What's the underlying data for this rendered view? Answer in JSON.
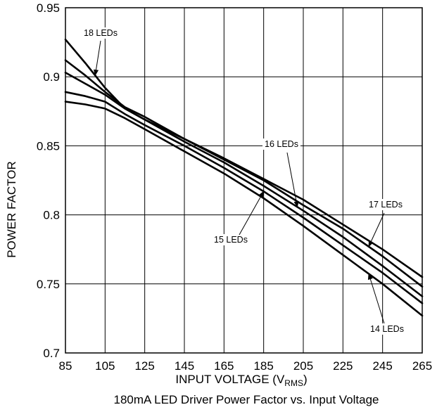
{
  "chart_data": {
    "type": "line",
    "xlabel_main": "INPUT VOLTAGE (V",
    "xlabel_sub": "RMS",
    "xlabel_end": ")",
    "ylabel": "POWER FACTOR",
    "caption": "180mA LED Driver Power Factor vs. Input Voltage",
    "xlim": [
      85,
      265
    ],
    "ylim": [
      0.7,
      0.95
    ],
    "x_ticks": [
      "85",
      "105",
      "125",
      "145",
      "165",
      "185",
      "205",
      "225",
      "245",
      "265"
    ],
    "y_ticks": [
      "0.7",
      "0.75",
      "0.8",
      "0.85",
      "0.9",
      "0.95"
    ],
    "grid": true,
    "series": [
      {
        "name": "14 LEDs",
        "x": [
          85,
          95,
          105,
          115,
          125,
          145,
          165,
          185,
          205,
          225,
          245,
          265
        ],
        "y": [
          0.882,
          0.88,
          0.877,
          0.87,
          0.862,
          0.846,
          0.83,
          0.812,
          0.792,
          0.771,
          0.75,
          0.727
        ]
      },
      {
        "name": "15 LEDs",
        "x": [
          85,
          95,
          105,
          115,
          125,
          145,
          165,
          185,
          205,
          225,
          245,
          265
        ],
        "y": [
          0.889,
          0.886,
          0.882,
          0.873,
          0.865,
          0.85,
          0.834,
          0.817,
          0.798,
          0.778,
          0.758,
          0.736
        ]
      },
      {
        "name": "16 LEDs",
        "x": [
          85,
          95,
          105,
          115,
          125,
          145,
          165,
          185,
          205,
          225,
          245,
          265
        ],
        "y": [
          0.903,
          0.895,
          0.887,
          0.877,
          0.869,
          0.853,
          0.838,
          0.821,
          0.803,
          0.784,
          0.763,
          0.741
        ]
      },
      {
        "name": "17 LEDs",
        "x": [
          85,
          95,
          105,
          115,
          125,
          145,
          165,
          185,
          205,
          225,
          245,
          265
        ],
        "y": [
          0.912,
          0.901,
          0.889,
          0.878,
          0.871,
          0.855,
          0.84,
          0.825,
          0.807,
          0.79,
          0.77,
          0.748
        ]
      },
      {
        "name": "18 LEDs",
        "x": [
          85,
          95,
          105,
          115,
          125,
          145,
          165,
          185,
          205,
          225,
          245,
          265
        ],
        "y": [
          0.927,
          0.91,
          0.892,
          0.877,
          0.869,
          0.855,
          0.841,
          0.826,
          0.811,
          0.793,
          0.775,
          0.755
        ]
      }
    ],
    "annotations": [
      {
        "text": "18 LEDs",
        "series": "18 LEDs"
      },
      {
        "text": "16 LEDs",
        "series": "16 LEDs"
      },
      {
        "text": "17 LEDs",
        "series": "17 LEDs"
      },
      {
        "text": "15 LEDs",
        "series": "15 LEDs"
      },
      {
        "text": "14 LEDs",
        "series": "14 LEDs"
      }
    ]
  }
}
